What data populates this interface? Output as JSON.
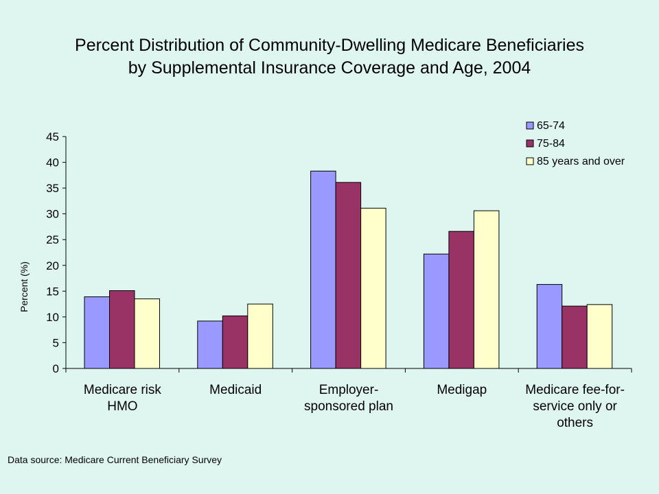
{
  "chart_data": {
    "type": "bar",
    "title_lines": [
      "Percent Distribution of Community-Dwelling Medicare Beneficiaries",
      "by Supplemental Insurance Coverage and Age, 2004"
    ],
    "ylabel": "Percent (%)",
    "ylim": [
      0,
      45
    ],
    "yticks": [
      0,
      5,
      10,
      15,
      20,
      25,
      30,
      35,
      40,
      45
    ],
    "grid": false,
    "legend_position": "top-right",
    "categories": [
      [
        "Medicare risk",
        "HMO"
      ],
      [
        "Medicaid"
      ],
      [
        "Employer-",
        "sponsored plan"
      ],
      [
        "Medigap"
      ],
      [
        "Medicare fee-for-",
        "service only or",
        "others"
      ]
    ],
    "series": [
      {
        "name": "65-74",
        "color": "#9999ff",
        "values": [
          13.9,
          9.2,
          38.3,
          22.2,
          16.3
        ]
      },
      {
        "name": "75-84",
        "color": "#993366",
        "values": [
          15.1,
          10.2,
          36.1,
          26.6,
          12.1
        ]
      },
      {
        "name": "85 years and over",
        "color": "#ffffcc",
        "values": [
          13.5,
          12.5,
          31.1,
          30.6,
          12.4
        ]
      }
    ]
  },
  "footer": {
    "source": "Data source: Medicare Current Beneficiary Survey"
  }
}
